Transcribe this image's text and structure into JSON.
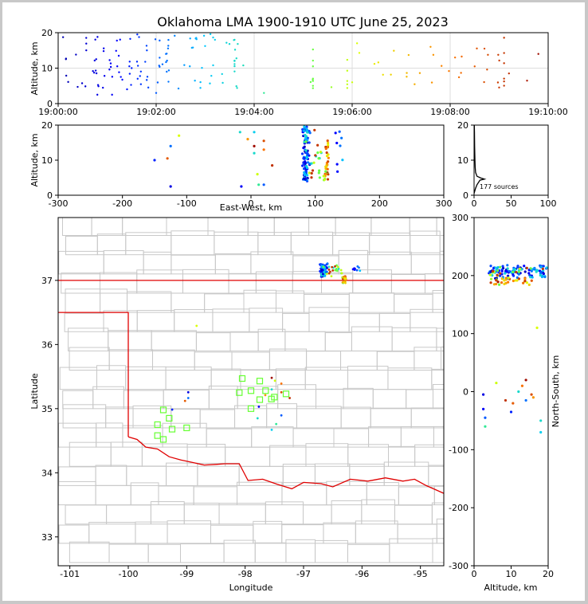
{
  "title": "Oklahoma LMA 1900-1910 UTC June 25, 2023",
  "colors": {
    "state_border": "#e00000",
    "county": "#c8c8c8",
    "station": "#66ff33",
    "axis": "#000000"
  },
  "chart_data": [
    {
      "panel": "altitude-vs-time",
      "type": "scatter",
      "ylabel": "Altitude, km",
      "ylim": [
        0,
        20
      ],
      "yticks": [
        0,
        10,
        20
      ],
      "xticks": [
        "19:00:00",
        "19:02:00",
        "19:04:00",
        "19:06:00",
        "19:08:00",
        "19:10:00"
      ],
      "x_unit": "minutes after 19:00 UTC",
      "xlim": [
        0,
        10
      ],
      "grid": true
    },
    {
      "panel": "altitude-vs-east-west",
      "type": "scatter",
      "xlabel": "East-West, km",
      "ylabel": "Altitude, km",
      "xlim": [
        -300,
        300
      ],
      "ylim": [
        0,
        20
      ],
      "xticks": [
        -300,
        -200,
        -100,
        0,
        100,
        200,
        300
      ],
      "yticks": [
        0,
        10,
        20
      ]
    },
    {
      "panel": "altitude-histogram",
      "type": "line",
      "xlim": [
        0,
        100
      ],
      "ylim": [
        0,
        20
      ],
      "xticks": [
        0,
        50,
        100
      ],
      "yticks": [
        0,
        10,
        20
      ],
      "annotation": "177 sources",
      "profile": [
        [
          0,
          0.5
        ],
        [
          2,
          2
        ],
        [
          4,
          3
        ],
        [
          8,
          4.3
        ],
        [
          14,
          4.6
        ],
        [
          9,
          4.9
        ],
        [
          4,
          5.4
        ],
        [
          2,
          6.5
        ],
        [
          1.5,
          8
        ],
        [
          1.2,
          10
        ],
        [
          1,
          12
        ],
        [
          0.8,
          14
        ],
        [
          0.6,
          16
        ],
        [
          0.5,
          18
        ],
        [
          0.3,
          20
        ]
      ]
    },
    {
      "panel": "plan-view-map",
      "type": "scatter",
      "xlabel": "Longitude",
      "ylabel": "Latitude",
      "xlim": [
        -101.2,
        -94.6
      ],
      "ylim": [
        32.55,
        37.98
      ],
      "xticks": [
        -101,
        -100,
        -99,
        -98,
        -97,
        -96,
        -95
      ],
      "yticks": [
        33,
        34,
        35,
        36,
        37
      ],
      "stations": [
        [
          -98.05,
          35.47
        ],
        [
          -97.75,
          35.43
        ],
        [
          -98.1,
          35.25
        ],
        [
          -97.9,
          35.28
        ],
        [
          -97.65,
          35.28
        ],
        [
          -97.5,
          35.18
        ],
        [
          -97.3,
          35.23
        ],
        [
          -97.75,
          35.14
        ],
        [
          -97.9,
          35.0
        ],
        [
          -99.4,
          34.98
        ],
        [
          -99.3,
          34.85
        ],
        [
          -99.5,
          34.75
        ],
        [
          -99.25,
          34.68
        ],
        [
          -99.0,
          34.7
        ],
        [
          -99.5,
          34.58
        ],
        [
          -99.4,
          34.52
        ],
        [
          -97.55,
          35.15
        ]
      ]
    },
    {
      "panel": "north-south-vs-altitude",
      "type": "scatter",
      "xlabel": "Altitude, km",
      "ylabel": "North-South, km",
      "xlim": [
        0,
        20
      ],
      "ylim": [
        -300,
        300
      ],
      "xticks": [
        0,
        10,
        20
      ],
      "yticks": [
        -300,
        -200,
        -100,
        0,
        100,
        200,
        300
      ]
    }
  ]
}
